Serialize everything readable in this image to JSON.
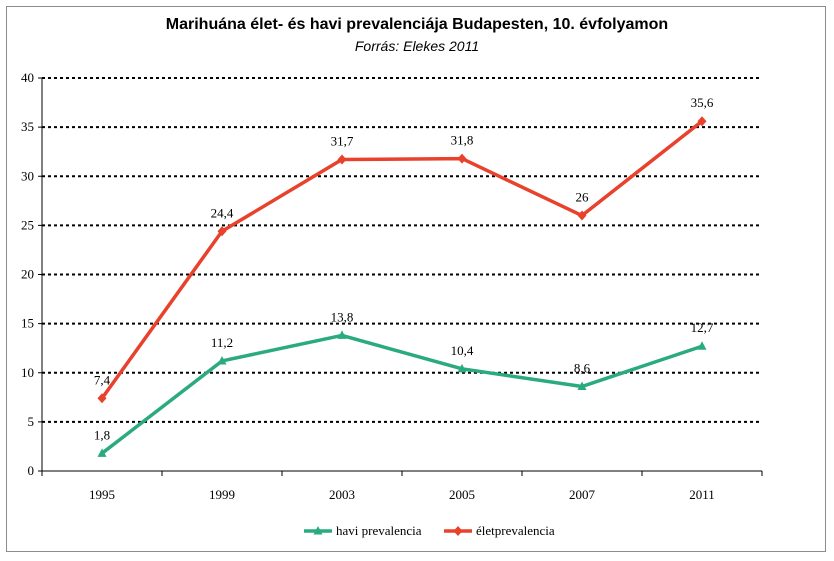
{
  "chart_data": {
    "type": "line",
    "title": "Marihuána élet- és havi prevalenciája Budapesten, 10. évfolyamon",
    "subtitle": "Forrás: Elekes 2011",
    "categories": [
      "1995",
      "1999",
      "2003",
      "2005",
      "2007",
      "2011"
    ],
    "ylim": [
      0,
      40
    ],
    "yticks": [
      0,
      5,
      10,
      15,
      20,
      25,
      30,
      35,
      40
    ],
    "grid": true,
    "legend_position": "bottom",
    "series": [
      {
        "name": "havi prevalencia",
        "color": "#2aaa7f",
        "marker": "triangle",
        "values": [
          1.8,
          11.2,
          13.8,
          10.4,
          8.6,
          12.7
        ],
        "labels": [
          "1,8",
          "11,2",
          "13,8",
          "10,4",
          "8,6",
          "12,7"
        ]
      },
      {
        "name": "életprevalencia",
        "color": "#e8412c",
        "marker": "diamond",
        "values": [
          7.4,
          24.4,
          31.7,
          31.8,
          26,
          35.6
        ],
        "labels": [
          "7,4",
          "24,4",
          "31,7",
          "31,8",
          "26",
          "35,6"
        ]
      }
    ]
  }
}
